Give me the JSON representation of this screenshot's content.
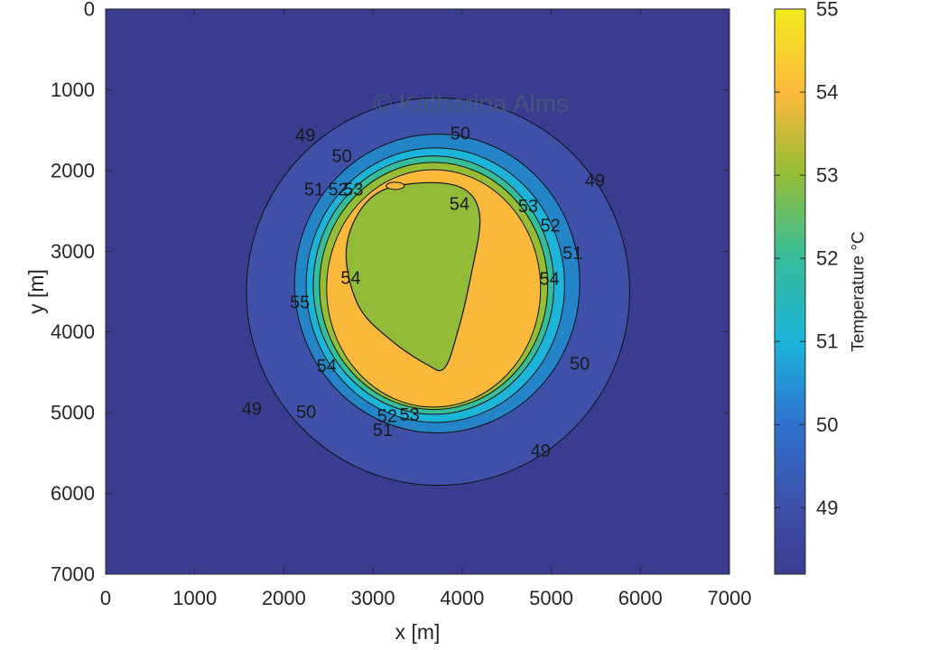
{
  "chart_data": {
    "type": "contour",
    "xlabel": "x [m]",
    "ylabel": "y [m]",
    "xlim": [
      0,
      7000
    ],
    "ylim": [
      0,
      7000
    ],
    "y_reversed": true,
    "xticks": [
      "0",
      "1000",
      "2000",
      "3000",
      "4000",
      "5000",
      "6000",
      "7000"
    ],
    "yticks": [
      "0",
      "1000",
      "2000",
      "3000",
      "4000",
      "5000",
      "6000",
      "7000"
    ],
    "background_level": 48.2,
    "colorbar": {
      "label": "Temperature °C",
      "range": [
        48.2,
        55
      ],
      "ticks": [
        "49",
        "50",
        "51",
        "52",
        "53",
        "54",
        "55"
      ]
    },
    "contours": [
      {
        "level": 49,
        "cx": 3730,
        "cy": 3500,
        "rx": 2150,
        "ry": 2400,
        "fill": "#3e50a8"
      },
      {
        "level": 50,
        "cx": 3720,
        "cy": 3400,
        "rx": 1600,
        "ry": 1850,
        "fill": "#2385c7"
      },
      {
        "level": 51,
        "cx": 3700,
        "cy": 3420,
        "rx": 1450,
        "ry": 1700,
        "fill": "#1cb4d9"
      },
      {
        "level": 52,
        "cx": 3680,
        "cy": 3420,
        "rx": 1350,
        "ry": 1600,
        "fill": "#36bd9a"
      },
      {
        "level": 53,
        "cx": 3680,
        "cy": 3430,
        "rx": 1280,
        "ry": 1530,
        "fill": "#96bd36"
      },
      {
        "level": 54,
        "cx": 3680,
        "cy": 3460,
        "rx": 1200,
        "ry": 1470,
        "fill": "#fbb93b"
      }
    ],
    "core": {
      "level": 54,
      "fill": "#93bb37",
      "points": [
        [
          3650,
          2150
        ],
        [
          4050,
          2250
        ],
        [
          4200,
          2600
        ],
        [
          4100,
          3300
        ],
        [
          3950,
          4000
        ],
        [
          3800,
          4450
        ],
        [
          3600,
          4400
        ],
        [
          3200,
          4100
        ],
        [
          2850,
          3700
        ],
        [
          2700,
          3100
        ],
        [
          2800,
          2600
        ],
        [
          3100,
          2250
        ]
      ]
    },
    "contour_labels": [
      {
        "text": "49",
        "x": 2240,
        "y": 1570
      },
      {
        "text": "50",
        "x": 3980,
        "y": 1550
      },
      {
        "text": "49",
        "x": 5490,
        "y": 2130
      },
      {
        "text": "50",
        "x": 2650,
        "y": 1830
      },
      {
        "text": "51",
        "x": 2340,
        "y": 2240
      },
      {
        "text": "52",
        "x": 2610,
        "y": 2240
      },
      {
        "text": "53",
        "x": 2780,
        "y": 2240
      },
      {
        "text": "54",
        "x": 3970,
        "y": 2420
      },
      {
        "text": "53",
        "x": 4740,
        "y": 2450
      },
      {
        "text": "52",
        "x": 4990,
        "y": 2690
      },
      {
        "text": "51",
        "x": 5240,
        "y": 3030
      },
      {
        "text": "54",
        "x": 2750,
        "y": 3340
      },
      {
        "text": "54",
        "x": 4980,
        "y": 3350
      },
      {
        "text": "55",
        "x": 2180,
        "y": 3640
      },
      {
        "text": "54",
        "x": 2480,
        "y": 4430
      },
      {
        "text": "50",
        "x": 5320,
        "y": 4400
      },
      {
        "text": "49",
        "x": 1640,
        "y": 4960
      },
      {
        "text": "50",
        "x": 2250,
        "y": 5000
      },
      {
        "text": "52",
        "x": 3160,
        "y": 5050
      },
      {
        "text": "53",
        "x": 3410,
        "y": 5030
      },
      {
        "text": "51",
        "x": 3110,
        "y": 5220
      },
      {
        "text": "49",
        "x": 4880,
        "y": 5480
      }
    ],
    "watermark": "© Katharina Alms"
  }
}
